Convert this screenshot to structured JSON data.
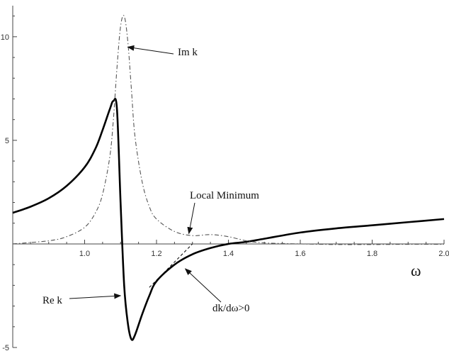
{
  "chart_data": {
    "type": "line",
    "title": "",
    "xlabel": "ω",
    "ylabel": "",
    "xlim": [
      0.8,
      2.0
    ],
    "ylim": [
      -5,
      11.5
    ],
    "grid": false,
    "x_ticks": [
      1.0,
      1.2,
      1.4,
      1.6,
      1.8,
      2.0
    ],
    "x_tick_labels": [
      "1.0",
      "1.2",
      "1.4",
      "1.6",
      "1.8",
      "2.0"
    ],
    "y_ticks": [
      -5,
      5,
      10
    ],
    "y_tick_labels": [
      "-5",
      "5",
      "10"
    ],
    "series": [
      {
        "name": "Re k",
        "style": "solid",
        "color": "#000000",
        "x": [
          0.8,
          0.85,
          0.9,
          0.95,
          1.0,
          1.03,
          1.05,
          1.07,
          1.08,
          1.09,
          1.1,
          1.11,
          1.12,
          1.13,
          1.14,
          1.16,
          1.18,
          1.2,
          1.25,
          1.3,
          1.35,
          1.4,
          1.45,
          1.5,
          1.6,
          1.7,
          1.8,
          1.9,
          2.0
        ],
        "y": [
          1.5,
          1.8,
          2.2,
          2.8,
          3.7,
          4.6,
          5.5,
          6.5,
          6.9,
          6.5,
          2.0,
          -2.0,
          -3.8,
          -4.6,
          -4.4,
          -3.4,
          -2.5,
          -1.8,
          -1.0,
          -0.5,
          -0.2,
          0.0,
          0.1,
          0.25,
          0.55,
          0.75,
          0.9,
          1.05,
          1.2
        ]
      },
      {
        "name": "Im k",
        "style": "dashdot",
        "color": "#555555",
        "x": [
          0.8,
          0.9,
          0.95,
          1.0,
          1.03,
          1.05,
          1.07,
          1.08,
          1.09,
          1.1,
          1.11,
          1.12,
          1.13,
          1.14,
          1.16,
          1.18,
          1.2,
          1.25,
          1.3,
          1.35,
          1.4,
          1.45,
          1.5,
          1.6,
          1.7,
          1.8,
          1.9,
          2.0
        ],
        "y": [
          0.0,
          0.15,
          0.35,
          0.8,
          1.5,
          2.4,
          4.2,
          6.0,
          8.5,
          10.5,
          11.0,
          9.8,
          7.5,
          5.2,
          3.0,
          1.8,
          1.2,
          0.6,
          0.4,
          0.45,
          0.35,
          0.15,
          0.05,
          0.0,
          -0.03,
          -0.03,
          -0.02,
          -0.02
        ]
      },
      {
        "style": "dashed",
        "color": "#000000",
        "x": [
          1.18,
          1.22,
          1.26,
          1.3
        ],
        "y": [
          -2.1,
          -1.4,
          -0.7,
          0.0
        ]
      }
    ],
    "annotations": [
      {
        "text": "Im k",
        "arrow_to": [
          1.12,
          9.5
        ]
      },
      {
        "text": "Local Minimum",
        "arrow_to": [
          1.29,
          0.5
        ]
      },
      {
        "text": "Re k",
        "arrow_to": [
          1.1,
          -2.5
        ]
      },
      {
        "text": "dk/dω>0",
        "arrow_to": [
          1.28,
          -1.2
        ]
      }
    ]
  }
}
